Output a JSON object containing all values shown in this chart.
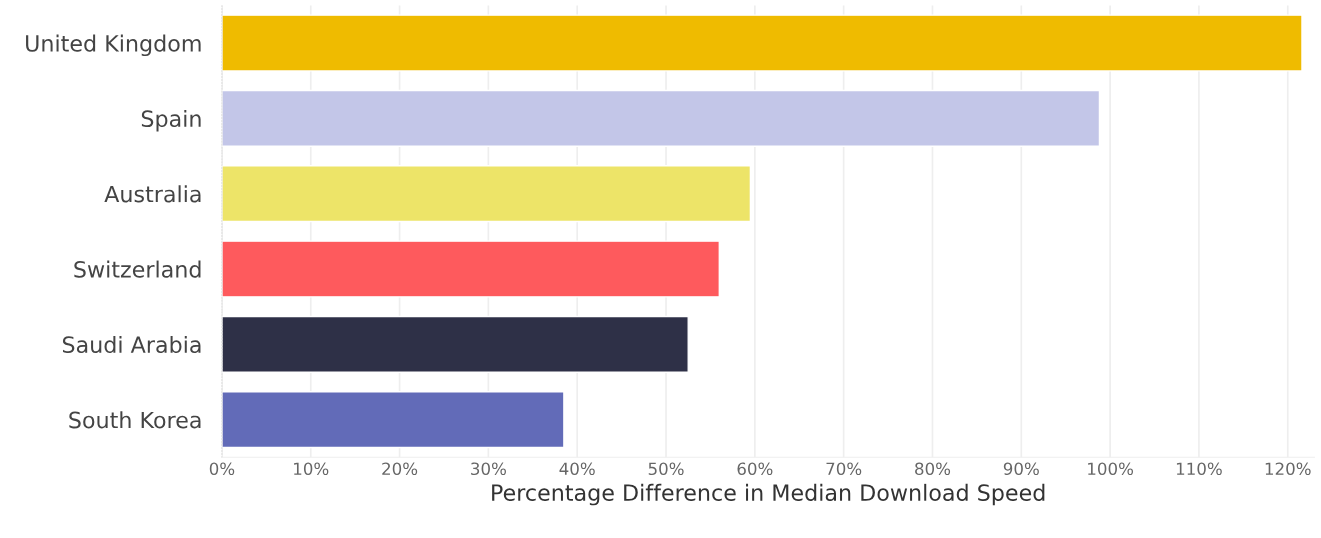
{
  "chart_data": {
    "type": "bar",
    "orientation": "horizontal",
    "xlabel": "Percentage Difference in Median Download Speed",
    "categories": [
      "United Kingdom",
      "Spain",
      "Australia",
      "Switzerland",
      "Saudi Arabia",
      "South Korea"
    ],
    "values": [
      121.6,
      98.8,
      59.5,
      56.0,
      52.5,
      38.5
    ],
    "colors": [
      "#efbb00",
      "#c3c6e8",
      "#ede468",
      "#fe5a5d",
      "#2e3047",
      "#626bb8"
    ],
    "xlim": [
      0,
      123
    ],
    "xticks": [
      {
        "value": 0,
        "label": "0%"
      },
      {
        "value": 10,
        "label": "10%"
      },
      {
        "value": 20,
        "label": "20%"
      },
      {
        "value": 30,
        "label": "30%"
      },
      {
        "value": 40,
        "label": "40%"
      },
      {
        "value": 50,
        "label": "50%"
      },
      {
        "value": 60,
        "label": "60%"
      },
      {
        "value": 70,
        "label": "70%"
      },
      {
        "value": 80,
        "label": "80%"
      },
      {
        "value": 90,
        "label": "90%"
      },
      {
        "value": 100,
        "label": "100%"
      },
      {
        "value": 110,
        "label": "110%"
      },
      {
        "value": 120,
        "label": "120%"
      }
    ],
    "grid": "x",
    "legend": false
  }
}
